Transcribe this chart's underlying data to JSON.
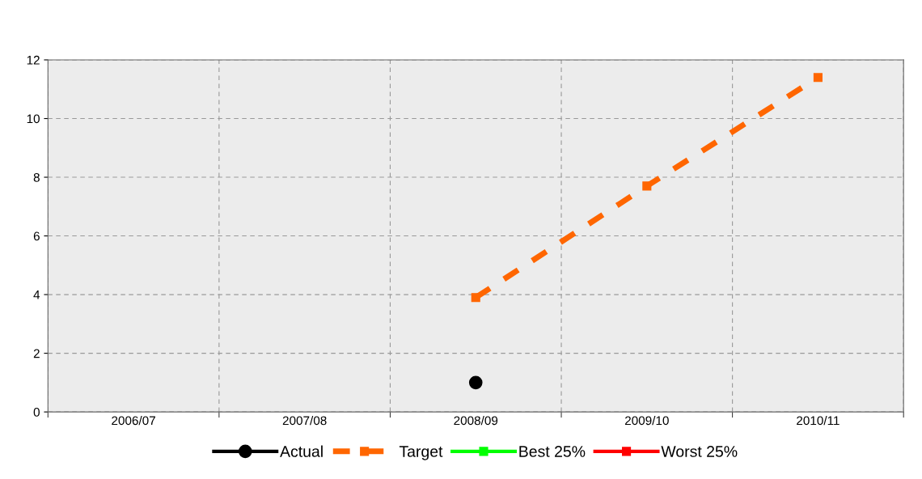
{
  "chart_data": {
    "type": "line",
    "categories": [
      "2006/07",
      "2007/08",
      "2008/09",
      "2009/10",
      "2010/11"
    ],
    "series": [
      {
        "name": "Actual",
        "color": "#000000",
        "values": [
          null,
          null,
          1.0,
          null,
          null
        ],
        "marker": "circle",
        "line_style": "solid"
      },
      {
        "name": "Target",
        "color": "#ff6600",
        "values": [
          null,
          null,
          3.9,
          7.7,
          11.4
        ],
        "marker": "square",
        "line_style": "dashed"
      },
      {
        "name": "Best 25%",
        "color": "#00ff00",
        "values": [
          null,
          null,
          null,
          null,
          null
        ],
        "marker": "square",
        "line_style": "solid"
      },
      {
        "name": "Worst 25%",
        "color": "#ff0000",
        "values": [
          null,
          null,
          null,
          null,
          null
        ],
        "marker": "square",
        "line_style": "solid"
      }
    ],
    "ylim": [
      0,
      12
    ],
    "yticks": [
      0,
      2,
      4,
      6,
      8,
      10,
      12
    ],
    "grid": true,
    "legend": "bottom"
  }
}
